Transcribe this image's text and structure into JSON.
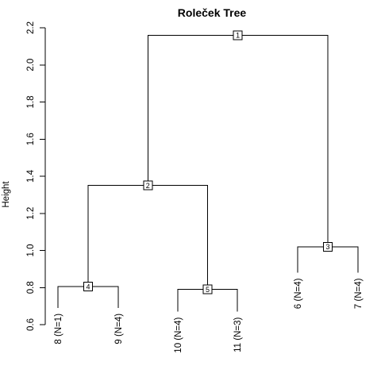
{
  "chart_data": {
    "type": "dendrogram",
    "title": "Roleček Tree",
    "ylabel": "Height",
    "ylim": [
      0.6,
      2.2
    ],
    "yticks": [
      "0.6",
      "0.8",
      "1.0",
      "1.2",
      "1.4",
      "1.6",
      "1.8",
      "2.0",
      "2.2"
    ],
    "leaves": [
      {
        "id": "8",
        "label": "8 (N=1)",
        "height": 0.69
      },
      {
        "id": "9",
        "label": "9 (N=4)",
        "height": 0.69
      },
      {
        "id": "10",
        "label": "10 (N=4)",
        "height": 0.67
      },
      {
        "id": "11",
        "label": "11 (N=3)",
        "height": 0.67
      },
      {
        "id": "6",
        "label": "6 (N=4)",
        "height": 0.88
      },
      {
        "id": "7",
        "label": "7 (N=4)",
        "height": 0.88
      }
    ],
    "nodes": [
      {
        "label": "1",
        "height": 2.16,
        "children": [
          "2",
          "3"
        ]
      },
      {
        "label": "2",
        "height": 1.35,
        "children": [
          "4",
          "5"
        ]
      },
      {
        "label": "3",
        "height": 1.02,
        "children": [
          "6",
          "7"
        ]
      },
      {
        "label": "4",
        "height": 0.805,
        "children": [
          "8",
          "9"
        ]
      },
      {
        "label": "5",
        "height": 0.79,
        "children": [
          "10",
          "11"
        ]
      }
    ]
  }
}
